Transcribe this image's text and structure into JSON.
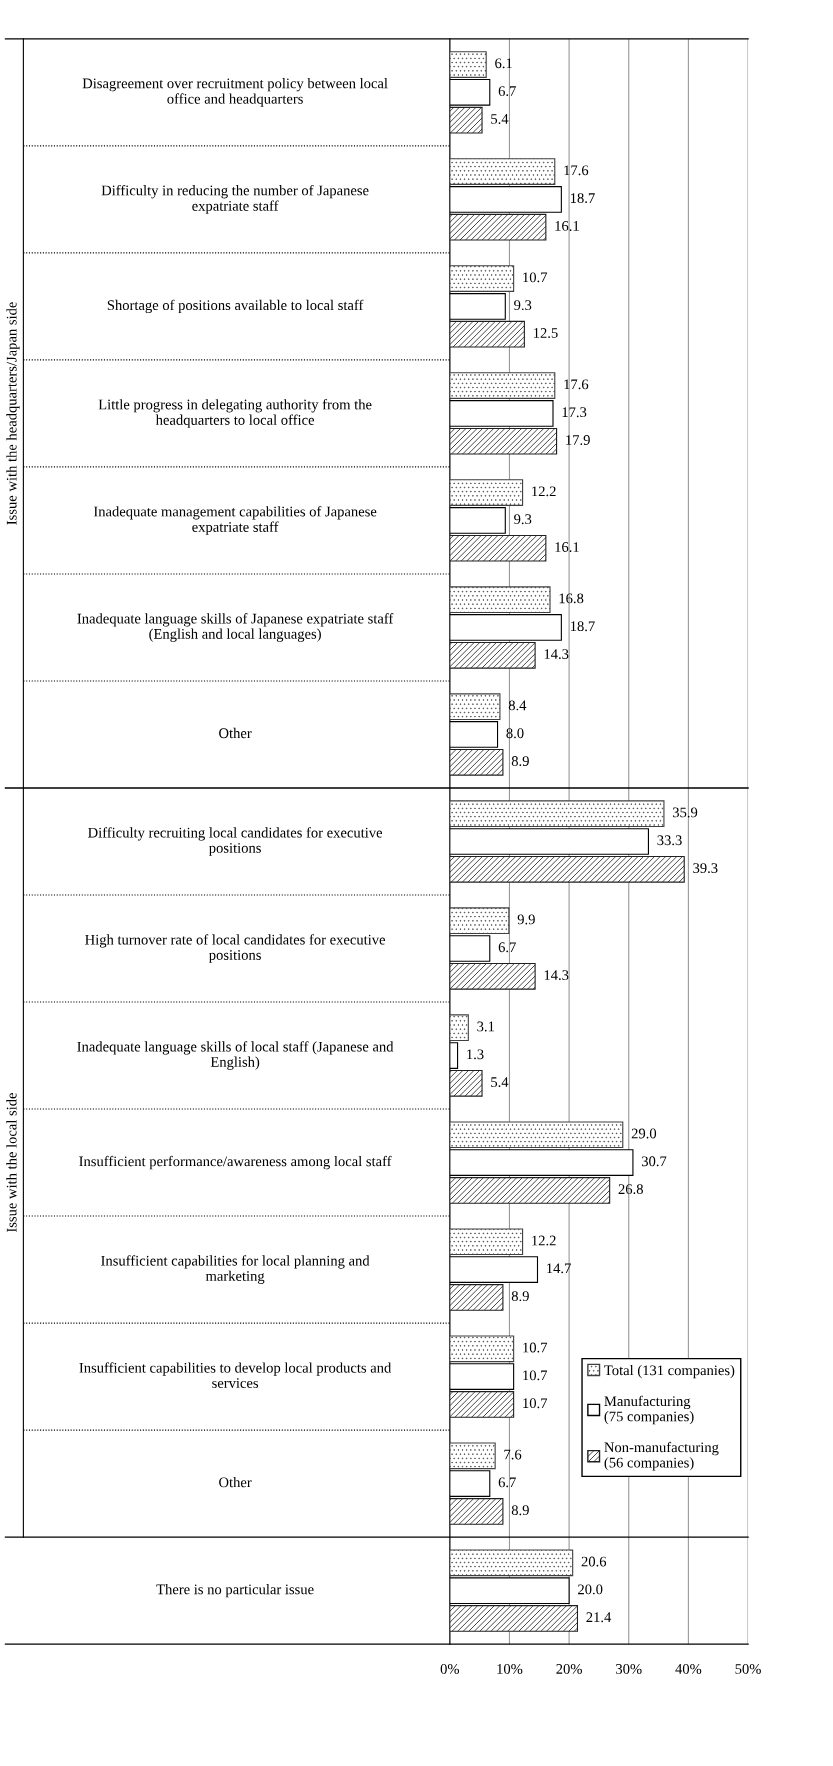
{
  "chart_data": {
    "type": "bar",
    "orientation": "horizontal",
    "categories": [
      "Disagreement over recruitment policy between local\noffice and headquarters",
      "Difficulty in reducing the number of Japanese\nexpatriate staff",
      "Shortage of positions available to local staff",
      "Little progress in delegating authority from the\nheadquarters to local office",
      "Inadequate management capabilities of Japanese\nexpatriate staff",
      "Inadequate language skills of Japanese expatriate staff\n(English and local languages)",
      "Other",
      "Difficulty recruiting local candidates for executive\npositions",
      "High turnover rate of local candidates for executive\npositions",
      "Inadequate language skills of local staff (Japanese and\nEnglish)",
      "Insufficient performance/awareness among local staff",
      "Insufficient capabilities for local planning and\nmarketing",
      "Insufficient capabilities to develop local products and\nservices",
      "Other",
      "There is no particular issue"
    ],
    "series": [
      {
        "name": "Total (131 companies)",
        "color": "#404040",
        "values": [
          6.1,
          17.6,
          10.7,
          17.6,
          12.2,
          16.8,
          8.4,
          35.9,
          9.9,
          3.1,
          29.0,
          12.2,
          10.7,
          7.6,
          20.6
        ],
        "value_labels": [
          "6.1",
          "17.6",
          "10.7",
          "17.6",
          "12.2",
          "16.8",
          "8.4",
          "35.9",
          "9.9",
          "3.1",
          "29.0",
          "12.2",
          "10.7",
          "7.6",
          "20.6"
        ]
      },
      {
        "name": "Manufacturing\n(75 companies)",
        "color": "#ffffff",
        "values": [
          6.7,
          18.7,
          9.3,
          17.3,
          9.3,
          18.7,
          8.0,
          33.3,
          6.7,
          1.3,
          30.7,
          14.7,
          10.7,
          6.7,
          20.0
        ],
        "value_labels": [
          "6.7",
          "18.7",
          "9.3",
          "17.3",
          "9.3",
          "18.7",
          "8.0",
          "33.3",
          "6.7",
          "1.3",
          "30.7",
          "14.7",
          "10.7",
          "6.7",
          "20.0"
        ]
      },
      {
        "name": "Non-manufacturing\n(56 companies)",
        "color": "#202020",
        "values": [
          5.4,
          16.1,
          12.5,
          17.9,
          16.1,
          14.3,
          8.9,
          39.3,
          14.3,
          5.4,
          26.8,
          8.9,
          10.7,
          8.9,
          21.4
        ],
        "value_labels": [
          "5.4",
          "16.1",
          "12.5",
          "17.9",
          "16.1",
          "14.3",
          "8.9",
          "39.3",
          "14.3",
          "5.4",
          "26.8",
          "8.9",
          "10.7",
          "8.9",
          "21.4"
        ]
      }
    ],
    "xlim": [
      0,
      50
    ],
    "xticks": [
      {
        "value": 0,
        "label": "0%"
      },
      {
        "value": 10,
        "label": "10%"
      },
      {
        "value": 20,
        "label": "20%"
      },
      {
        "value": 30,
        "label": "30%"
      },
      {
        "value": 40,
        "label": "40%"
      },
      {
        "value": 50,
        "label": "50%"
      }
    ],
    "grid": "x",
    "legend": "bottom right",
    "annotations": [
      "Issue with the headquarters/Japan side",
      "Issue with the local side"
    ]
  }
}
